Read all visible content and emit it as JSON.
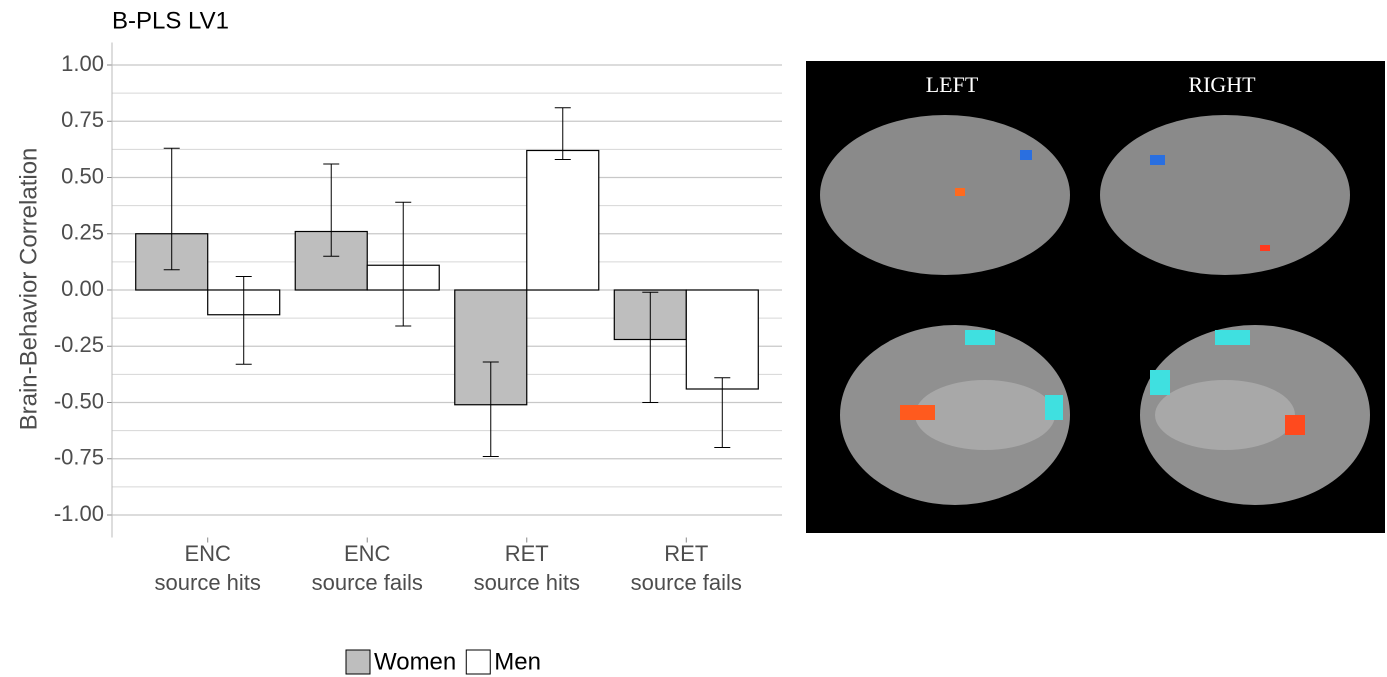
{
  "chart_data": {
    "type": "bar",
    "title": "B-PLS LV1",
    "y_label": "Brain-Behavior Correlation",
    "categories": [
      [
        "ENC",
        "source hits"
      ],
      [
        "ENC",
        "source fails"
      ],
      [
        "RET",
        "source hits"
      ],
      [
        "RET",
        "source fails"
      ]
    ],
    "series": [
      {
        "name": "Women",
        "color": "#bebebe",
        "values": [
          0.25,
          0.26,
          -0.51,
          -0.22
        ],
        "ci_low": [
          0.09,
          0.15,
          -0.74,
          -0.5
        ],
        "ci_high": [
          0.63,
          0.56,
          -0.32,
          -0.01
        ]
      },
      {
        "name": "Men",
        "color": "#ffffff",
        "values": [
          -0.11,
          0.11,
          0.62,
          -0.44
        ],
        "ci_low": [
          -0.33,
          -0.16,
          0.58,
          -0.7
        ],
        "ci_high": [
          0.06,
          0.39,
          0.81,
          -0.39
        ]
      }
    ],
    "ylim": [
      -1.1,
      1.1
    ],
    "yticks": [
      {
        "value": 1,
        "label": "1.00"
      },
      {
        "value": 0.75,
        "label": "0.75"
      },
      {
        "value": 0.5,
        "label": "0.50"
      },
      {
        "value": 0.25,
        "label": "0.25"
      },
      {
        "value": 0,
        "label": "0.00"
      },
      {
        "value": -0.25,
        "label": "-0.25"
      },
      {
        "value": -0.5,
        "label": "-0.50"
      },
      {
        "value": -0.75,
        "label": "-0.75"
      },
      {
        "value": -1,
        "label": "-1.00"
      }
    ],
    "minor_yticks": [
      0.875,
      0.625,
      0.375,
      0.125,
      -0.125,
      -0.375,
      -0.625,
      -0.875
    ],
    "grid": true,
    "legend": "bottom"
  },
  "image": {
    "left_label": "LEFT",
    "right_label": "RIGHT"
  }
}
